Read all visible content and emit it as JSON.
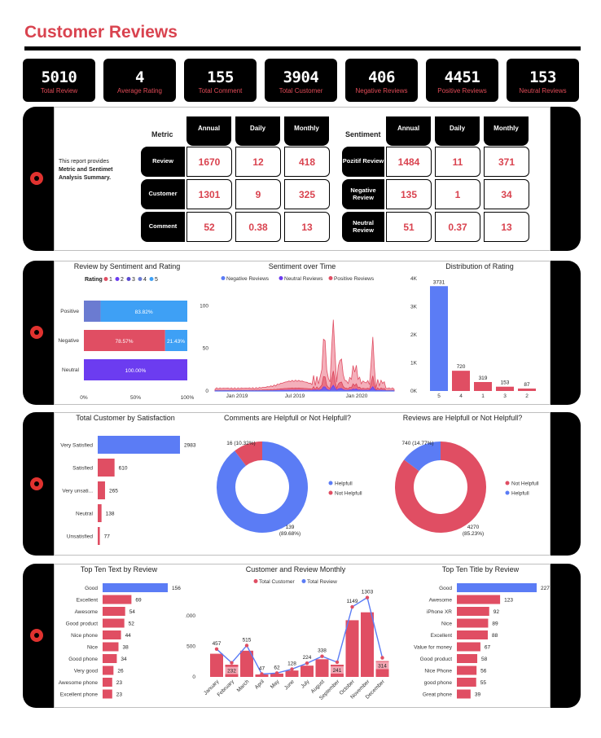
{
  "page": {
    "title": "Customer Reviews"
  },
  "colors": {
    "accent": "#d9434f",
    "blue": "#5b7cf5",
    "purple": "#6c3cf0",
    "red": "#e04e63",
    "pink": "#f3a6b3",
    "black": "#000000"
  },
  "kpis": [
    {
      "value": "5010",
      "label": "Total Review"
    },
    {
      "value": "4",
      "label": "Average Rating"
    },
    {
      "value": "155",
      "label": "Total Comment"
    },
    {
      "value": "3904",
      "label": "Total Customer"
    },
    {
      "value": "406",
      "label": "Negative Reviews"
    },
    {
      "value": "4451",
      "label": "Positive Reviews"
    },
    {
      "value": "153",
      "label": "Neutral Reviews"
    }
  ],
  "summary": {
    "desc_line1": "This report provides",
    "desc_line2": "Metric and Sentimet",
    "desc_line3": "Analysis Summary.",
    "metric_label": "Metric",
    "sentiment_label": "Sentiment",
    "columns": [
      "Annual",
      "Daily",
      "Monthly"
    ],
    "metric_rows": [
      {
        "label": "Review",
        "values": [
          "1670",
          "12",
          "418"
        ]
      },
      {
        "label": "Customer",
        "values": [
          "1301",
          "9",
          "325"
        ]
      },
      {
        "label": "Comment",
        "values": [
          "52",
          "0.38",
          "13"
        ]
      }
    ],
    "sentiment_rows": [
      {
        "label": "Pozitif Review",
        "values": [
          "1484",
          "11",
          "371"
        ]
      },
      {
        "label": "Negative Review",
        "values": [
          "135",
          "1",
          "34"
        ]
      },
      {
        "label": "Neutral Review",
        "values": [
          "51",
          "0.37",
          "13"
        ]
      }
    ]
  },
  "chart_data": [
    {
      "type": "bar",
      "orientation": "horizontal-stacked-100",
      "title": "Review by Sentiment and Rating",
      "legend_title": "Rating",
      "legend": [
        "1",
        "2",
        "3",
        "4",
        "5"
      ],
      "categories": [
        "Positive",
        "Negative",
        "Neutral"
      ],
      "segment_labels": {
        "positive_5": "83.82%",
        "negative_1": "78.57%",
        "negative_5": "21.43%",
        "neutral_full": "100.00%"
      },
      "series": [
        {
          "name": "1",
          "values": [
            0,
            78.57,
            0
          ]
        },
        {
          "name": "4",
          "values": [
            16.18,
            0,
            0
          ]
        },
        {
          "name": "5",
          "values": [
            83.82,
            21.43,
            0
          ]
        },
        {
          "name": "2",
          "values": [
            0,
            0,
            100
          ]
        }
      ],
      "xticks": [
        "0%",
        "50%",
        "100%"
      ]
    },
    {
      "type": "area",
      "title": "Sentiment over Time",
      "legend": [
        "Negative Reviews",
        "Neutral Reviews",
        "Positive Reviews"
      ],
      "xticks": [
        "Jan 2019",
        "Jul 2019",
        "Jan 2020"
      ],
      "yticks": [
        "0",
        "50",
        "100"
      ],
      "ylim": [
        0,
        110
      ]
    },
    {
      "type": "bar",
      "title": "Distribution of Rating",
      "categories": [
        "5",
        "4",
        "1",
        "3",
        "2"
      ],
      "values": [
        3731,
        720,
        319,
        153,
        87
      ],
      "yticks": [
        "0K",
        "1K",
        "2K",
        "3K",
        "4K"
      ],
      "ylim": [
        0,
        4000
      ]
    },
    {
      "type": "bar",
      "orientation": "horizontal",
      "title": "Total Customer by Satisfaction",
      "categories": [
        "Very Satisfied",
        "Satisfied",
        "Very unsati...",
        "Neutral",
        "Unsatisfied"
      ],
      "values": [
        2983,
        610,
        265,
        138,
        77
      ]
    },
    {
      "type": "pie",
      "title": "Comments are Helpfull or Not Helpfull?",
      "legend": [
        "Helpfull",
        "Not Helpfull"
      ],
      "values": [
        139,
        16
      ],
      "labels": [
        "139",
        "16 (10.32%)"
      ],
      "percent_labels": [
        "(89.68%)",
        ""
      ]
    },
    {
      "type": "pie",
      "title": "Reviews are Helpfull or Not Helpfull?",
      "legend": [
        "Not Helpfull",
        "Helpfull"
      ],
      "values": [
        4270,
        740
      ],
      "labels": [
        "4270",
        "740 (14.77%)"
      ],
      "percent_labels": [
        "(85.23%)",
        ""
      ]
    },
    {
      "type": "bar",
      "orientation": "horizontal",
      "title": "Top Ten Text by Review",
      "categories": [
        "Good",
        "Excellent",
        "Awesome",
        "Good product",
        "Nice phone",
        "Nice",
        "Good phone",
        "Very good",
        "Awesome phone",
        "Excellent phone"
      ],
      "values": [
        156,
        69,
        54,
        52,
        44,
        38,
        34,
        26,
        23,
        23
      ]
    },
    {
      "type": "bar",
      "title": "Customer and Review Monthly",
      "legend": [
        "Total Customer",
        "Total Review"
      ],
      "categories": [
        "January",
        "February",
        "March",
        "April",
        "May",
        "June",
        "July",
        "August",
        "September",
        "October",
        "November",
        "December"
      ],
      "series": [
        {
          "name": "Total Review",
          "values": [
            457,
            232,
            515,
            47,
            62,
            128,
            224,
            338,
            241,
            1149,
            1303,
            314
          ]
        },
        {
          "name": "Total Customer",
          "values": [
            380,
            200,
            430,
            40,
            55,
            105,
            185,
            290,
            200,
            930,
            1060,
            260
          ]
        }
      ],
      "yticks": [
        "0",
        "500",
        "1000"
      ],
      "ylim": [
        0,
        1350
      ]
    },
    {
      "type": "bar",
      "orientation": "horizontal",
      "title": "Top Ten Title by Review",
      "categories": [
        "Good",
        "Awesome",
        "iPhone XR",
        "Nice",
        "Excellent",
        "Value for money",
        "Good product",
        "Nice Phone",
        "good phone",
        "Great phone"
      ],
      "values": [
        227,
        123,
        92,
        89,
        88,
        67,
        58,
        56,
        55,
        39
      ]
    }
  ]
}
